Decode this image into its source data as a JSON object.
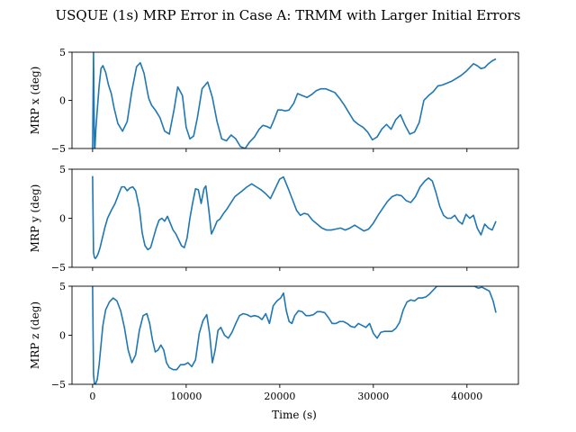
{
  "chart_data": {
    "type": "line",
    "title": "USQUE (1s) MRP Error in Case A: TRMM with Larger Initial Errors",
    "xlabel": "Time (s)",
    "xlim": [
      -2200,
      45500
    ],
    "xticks": [
      0,
      10000,
      20000,
      30000,
      40000
    ],
    "color": "#1f77b4",
    "panels": [
      {
        "name": "x",
        "ylabel": "MRP x (deg)",
        "ylim": [
          -5,
          5
        ],
        "yticks": [
          -5,
          0,
          5
        ],
        "x": [
          0,
          100,
          200,
          250,
          350,
          500,
          700,
          900,
          1100,
          1400,
          1700,
          2000,
          2300,
          2700,
          3200,
          3700,
          4200,
          4700,
          5100,
          5500,
          5800,
          6000,
          6300,
          6700,
          7200,
          7700,
          8200,
          8700,
          9100,
          9600,
          10000,
          10400,
          10800,
          11200,
          11700,
          12300,
          12800,
          13300,
          13800,
          14300,
          14800,
          15300,
          15800,
          16300,
          16800,
          17300,
          17800,
          18200,
          18600,
          19000,
          19400,
          19800,
          20200,
          20600,
          21000,
          21500,
          21900,
          22400,
          22900,
          23400,
          23900,
          24400,
          24900,
          25400,
          25900,
          26400,
          26900,
          27400,
          27900,
          28400,
          28900,
          29400,
          29900,
          30400,
          30900,
          31400,
          31900,
          32400,
          32900,
          33400,
          33900,
          34400,
          34900,
          35400,
          35900,
          36400,
          36900,
          37400,
          37900,
          38400,
          38900,
          39400,
          39900,
          40300,
          40700,
          41100,
          41500,
          41900,
          42300,
          42700,
          43100
        ],
        "y": [
          -5,
          5,
          -5,
          -5,
          -3,
          -1,
          1.5,
          3.3,
          3.6,
          2.9,
          1.6,
          0.7,
          -0.8,
          -2.4,
          -3.2,
          -2.2,
          1.0,
          3.5,
          3.9,
          2.8,
          1.2,
          0.2,
          -0.5,
          -1.0,
          -1.8,
          -3.2,
          -3.5,
          -1.0,
          1.4,
          0.5,
          -2.8,
          -4.0,
          -3.7,
          -1.8,
          1.2,
          1.9,
          0.3,
          -2.2,
          -4.0,
          -4.2,
          -3.6,
          -4.0,
          -4.8,
          -5.0,
          -4.3,
          -3.8,
          -3.0,
          -2.6,
          -2.7,
          -2.9,
          -2.0,
          -1.0,
          -1.0,
          -1.1,
          -1.0,
          -0.3,
          0.7,
          0.5,
          0.3,
          0.6,
          1.0,
          1.2,
          1.2,
          1.0,
          0.8,
          0.2,
          -0.5,
          -1.3,
          -2.1,
          -2.5,
          -2.8,
          -3.3,
          -4.1,
          -3.8,
          -3.0,
          -2.5,
          -3.0,
          -2.0,
          -1.5,
          -2.6,
          -3.5,
          -3.3,
          -2.3,
          0.0,
          0.5,
          0.9,
          1.5,
          1.6,
          1.8,
          2.0,
          2.3,
          2.6,
          3.0,
          3.4,
          3.8,
          3.6,
          3.3,
          3.4,
          3.8,
          4.1,
          4.3
        ]
      },
      {
        "name": "y",
        "ylabel": "MRP y (deg)",
        "ylim": [
          -5,
          5
        ],
        "yticks": [
          -5,
          0,
          5
        ],
        "x": [
          0,
          100,
          200,
          300,
          450,
          600,
          800,
          1000,
          1300,
          1600,
          2000,
          2400,
          2800,
          3100,
          3400,
          3700,
          4000,
          4300,
          4600,
          5000,
          5300,
          5600,
          5900,
          6200,
          6500,
          6800,
          7100,
          7400,
          7700,
          8000,
          8300,
          8600,
          8900,
          9200,
          9500,
          9800,
          10100,
          10400,
          10700,
          11000,
          11300,
          11600,
          11900,
          12100,
          12400,
          12700,
          13000,
          13300,
          13600,
          14000,
          14400,
          14800,
          15200,
          15600,
          16000,
          16500,
          17000,
          17500,
          18000,
          18500,
          19000,
          19500,
          20000,
          20400,
          20700,
          21000,
          21400,
          21800,
          22200,
          22600,
          23000,
          23500,
          24000,
          24500,
          25000,
          25500,
          26000,
          26500,
          27000,
          27500,
          28000,
          28500,
          29000,
          29500,
          30000,
          30500,
          31000,
          31500,
          32000,
          32500,
          33000,
          33500,
          34000,
          34500,
          35000,
          35500,
          35900,
          36300,
          36700,
          37100,
          37500,
          37900,
          38300,
          38700,
          39100,
          39500,
          39900,
          40300,
          40700,
          41100,
          41500,
          41900,
          42300,
          42700,
          43100
        ],
        "y": [
          4.3,
          -3.5,
          -4.0,
          -4.1,
          -3.9,
          -3.6,
          -3.0,
          -2.2,
          -1.0,
          0.0,
          0.8,
          1.5,
          2.5,
          3.2,
          3.2,
          2.8,
          3.1,
          3.2,
          2.8,
          1.0,
          -1.5,
          -2.8,
          -3.2,
          -3.0,
          -2.0,
          -1.0,
          -0.2,
          0.0,
          -0.3,
          0.2,
          -0.5,
          -1.2,
          -1.6,
          -2.2,
          -2.8,
          -3.0,
          -2.0,
          0.0,
          1.6,
          3.0,
          2.9,
          1.5,
          3.0,
          3.3,
          1.0,
          -1.6,
          -1.0,
          -0.3,
          -0.1,
          0.5,
          1.0,
          1.6,
          2.2,
          2.5,
          2.8,
          3.2,
          3.5,
          3.2,
          2.9,
          2.5,
          2.0,
          3.0,
          4.0,
          4.2,
          3.5,
          2.8,
          1.8,
          0.8,
          0.3,
          0.5,
          0.4,
          -0.2,
          -0.6,
          -1.0,
          -1.2,
          -1.2,
          -1.1,
          -1.0,
          -1.2,
          -1.0,
          -0.7,
          -1.0,
          -1.3,
          -1.1,
          -0.5,
          0.3,
          1.0,
          1.7,
          2.2,
          2.4,
          2.3,
          1.8,
          1.6,
          2.2,
          3.2,
          3.8,
          4.1,
          3.8,
          2.6,
          1.2,
          0.3,
          0.0,
          0.0,
          0.3,
          -0.3,
          -0.6,
          0.4,
          0.0,
          0.3,
          -1.0,
          -1.7,
          -0.6,
          -1.0,
          -1.2,
          -0.3
        ]
      },
      {
        "name": "z",
        "ylabel": "MRP z (deg)",
        "ylim": [
          -5,
          5
        ],
        "yticks": [
          -5,
          0,
          5
        ],
        "x": [
          0,
          100,
          200,
          300,
          500,
          700,
          900,
          1100,
          1400,
          1800,
          2200,
          2600,
          3000,
          3400,
          3800,
          4200,
          4600,
          5000,
          5400,
          5800,
          6100,
          6400,
          6700,
          7000,
          7300,
          7600,
          7900,
          8200,
          8600,
          9000,
          9400,
          9800,
          10200,
          10600,
          11000,
          11400,
          11800,
          12200,
          12500,
          12800,
          13100,
          13400,
          13700,
          14100,
          14500,
          14900,
          15300,
          15700,
          16100,
          16500,
          16900,
          17300,
          17700,
          18100,
          18500,
          18900,
          19300,
          19700,
          20100,
          20400,
          20700,
          21000,
          21300,
          21600,
          22000,
          22400,
          22800,
          23200,
          23600,
          24000,
          24400,
          24800,
          25200,
          25600,
          26000,
          26400,
          26800,
          27200,
          27600,
          28000,
          28400,
          28800,
          29200,
          29600,
          30000,
          30400,
          30800,
          31200,
          31600,
          32000,
          32400,
          32800,
          33200,
          33600,
          34000,
          34400,
          34800,
          35200,
          35600,
          36000,
          36400,
          36800,
          37200,
          37600,
          38000,
          38400,
          38800,
          39200,
          39600,
          40000,
          40400,
          40800,
          41200,
          41600,
          42000,
          42400,
          42800,
          43100
        ],
        "y": [
          5,
          -4.0,
          -5,
          -5,
          -4.5,
          -3.0,
          -1.0,
          1.0,
          2.6,
          3.4,
          3.8,
          3.5,
          2.5,
          0.8,
          -1.5,
          -2.8,
          -2.0,
          0.5,
          2.0,
          2.2,
          1.2,
          -0.5,
          -1.7,
          -1.5,
          -1.0,
          -1.5,
          -2.8,
          -3.3,
          -3.5,
          -3.5,
          -3.0,
          -3.0,
          -2.8,
          -3.2,
          -2.5,
          0.2,
          1.5,
          2.1,
          0.2,
          -2.8,
          -1.5,
          0.5,
          0.8,
          0.0,
          -0.3,
          0.3,
          1.2,
          2.0,
          2.2,
          2.1,
          1.9,
          2.0,
          1.9,
          1.6,
          2.2,
          1.2,
          3.0,
          3.5,
          3.8,
          4.3,
          2.5,
          1.4,
          1.2,
          2.0,
          2.5,
          2.4,
          2.0,
          2.0,
          2.1,
          2.4,
          2.4,
          2.3,
          1.8,
          1.2,
          1.2,
          1.4,
          1.4,
          1.2,
          0.9,
          0.8,
          1.2,
          1.0,
          0.8,
          1.2,
          0.2,
          -0.3,
          0.3,
          0.4,
          0.4,
          0.4,
          0.7,
          1.3,
          2.6,
          3.4,
          3.6,
          3.5,
          3.8,
          3.8,
          3.9,
          4.2,
          4.6,
          5.0,
          5,
          5,
          5,
          5,
          5,
          5,
          5,
          5,
          5,
          5,
          4.8,
          4.9,
          4.7,
          4.5,
          3.5,
          2.3
        ]
      }
    ]
  }
}
